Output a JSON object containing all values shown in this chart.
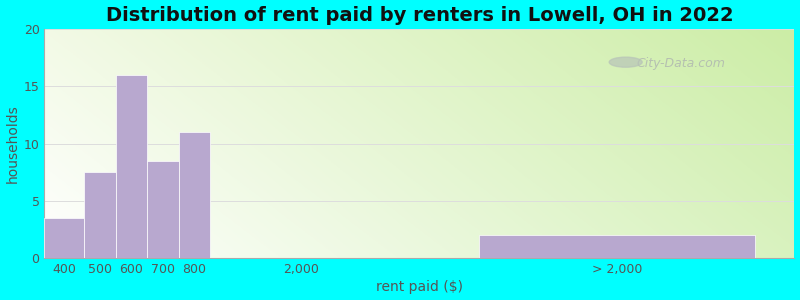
{
  "title": "Distribution of rent paid by renters in Lowell, OH in 2022",
  "xlabel": "rent paid ($)",
  "ylabel": "households",
  "bar_color": "#b8a8cf",
  "bar_edgecolor": "#ffffff",
  "background_color": "#00ffff",
  "ylim": [
    0,
    20
  ],
  "yticks": [
    0,
    5,
    10,
    15,
    20
  ],
  "values": [
    3.5,
    7.5,
    16,
    8.5,
    11,
    2
  ],
  "bar_lefts": [
    0.0,
    1.0,
    1.8,
    2.6,
    3.4,
    11.0
  ],
  "bar_widths": [
    1.0,
    0.8,
    0.8,
    0.8,
    0.8,
    7.0
  ],
  "tick_positions": [
    0.5,
    1.4,
    2.2,
    3.0,
    3.8,
    6.5,
    14.5
  ],
  "tick_labels": [
    "400",
    "500",
    "600",
    "700",
    "800",
    "2,000",
    "> 2,000"
  ],
  "x_min": 0,
  "x_max": 19,
  "watermark": "City-Data.com",
  "title_fontsize": 14,
  "axis_label_fontsize": 10,
  "tick_fontsize": 9,
  "grid_color": "#dddddd",
  "spine_color": "#aaaaaa",
  "text_color": "#555555",
  "title_color": "#111111"
}
